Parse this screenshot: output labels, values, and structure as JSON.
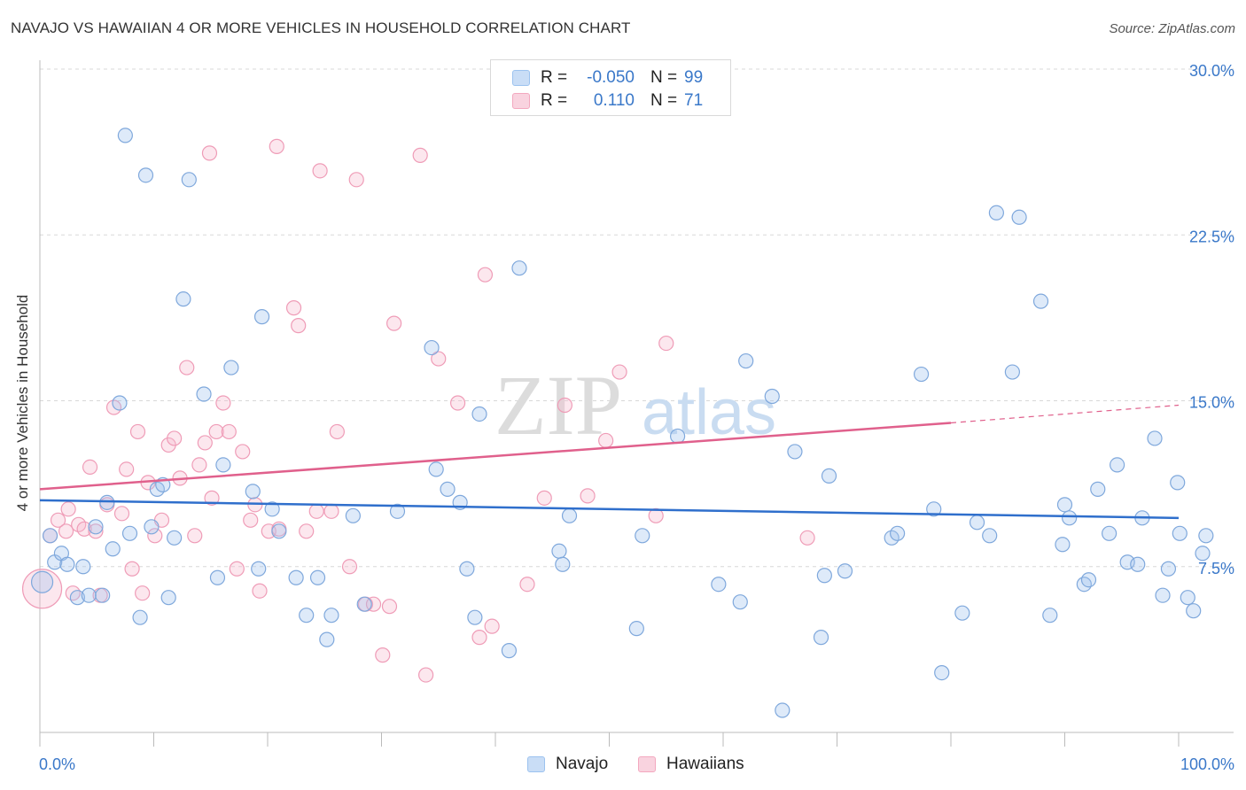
{
  "title": "NAVAJO VS HAWAIIAN 4 OR MORE VEHICLES IN HOUSEHOLD CORRELATION CHART",
  "source": "Source: ZipAtlas.com",
  "watermark": {
    "zip": "ZIP",
    "atlas": "atlas"
  },
  "legend": {
    "rows": [
      {
        "r_label": "R =",
        "r_value": "-0.050",
        "n_label": "N =",
        "n_value": "99",
        "color": "#9cc2ef",
        "fill": "#c9ddf6"
      },
      {
        "r_label": "R =",
        "r_value": "0.110",
        "n_label": "N =",
        "n_value": "71",
        "color": "#f3a8bf",
        "fill": "#f9d3df"
      }
    ]
  },
  "bottom_legend": {
    "navajo": "Navajo",
    "hawaiians": "Hawaiians"
  },
  "colors": {
    "navajo_stroke": "#7fa8dc",
    "navajo_fill": "rgba(160,196,238,0.35)",
    "navajo_line": "#2f6fcc",
    "hawaiian_stroke": "#ef9cb7",
    "hawaiian_fill": "rgba(246,186,206,0.35)",
    "hawaiian_line": "#e0608c",
    "tick_label": "#3a78c9",
    "grid": "#d8d8d8"
  },
  "chart_data": {
    "type": "scatter",
    "title": "NAVAJO VS HAWAIIAN 4 OR MORE VEHICLES IN HOUSEHOLD CORRELATION CHART",
    "xlabel": "",
    "ylabel": "4 or more Vehicles in Household",
    "xlim": [
      0,
      100
    ],
    "ylim": [
      0,
      30
    ],
    "x_tick_labels": [
      "0.0%",
      "100.0%"
    ],
    "y_ticks": [
      7.5,
      15.0,
      22.5,
      30.0
    ],
    "y_tick_labels": [
      "7.5%",
      "15.0%",
      "22.5%",
      "30.0%"
    ],
    "grid": "horizontal dashed",
    "series": [
      {
        "name": "Navajo",
        "trend": {
          "x": [
            0,
            100
          ],
          "y": [
            10.5,
            9.7
          ]
        },
        "points": [
          [
            0.2,
            6.8
          ],
          [
            0.9,
            8.9
          ],
          [
            1.3,
            7.7
          ],
          [
            1.9,
            8.1
          ],
          [
            2.4,
            7.6
          ],
          [
            3.3,
            6.1
          ],
          [
            3.8,
            7.5
          ],
          [
            4.3,
            6.2
          ],
          [
            4.9,
            9.3
          ],
          [
            5.5,
            6.2
          ],
          [
            5.9,
            10.4
          ],
          [
            6.4,
            8.3
          ],
          [
            7.0,
            14.9
          ],
          [
            7.5,
            27.0
          ],
          [
            7.9,
            9.0
          ],
          [
            8.8,
            5.2
          ],
          [
            9.3,
            25.2
          ],
          [
            9.8,
            9.3
          ],
          [
            10.3,
            11.0
          ],
          [
            10.8,
            11.2
          ],
          [
            11.3,
            6.1
          ],
          [
            11.8,
            8.8
          ],
          [
            12.6,
            19.6
          ],
          [
            13.1,
            25.0
          ],
          [
            14.4,
            15.3
          ],
          [
            15.6,
            7.0
          ],
          [
            16.1,
            12.1
          ],
          [
            16.8,
            16.5
          ],
          [
            18.7,
            10.9
          ],
          [
            19.2,
            7.4
          ],
          [
            19.5,
            18.8
          ],
          [
            20.4,
            10.1
          ],
          [
            21.0,
            9.1
          ],
          [
            22.5,
            7.0
          ],
          [
            23.4,
            5.3
          ],
          [
            24.4,
            7.0
          ],
          [
            25.2,
            4.2
          ],
          [
            25.6,
            5.3
          ],
          [
            27.5,
            9.8
          ],
          [
            28.5,
            5.8
          ],
          [
            31.4,
            10.0
          ],
          [
            34.4,
            17.4
          ],
          [
            34.8,
            11.9
          ],
          [
            35.8,
            11.0
          ],
          [
            36.9,
            10.4
          ],
          [
            37.5,
            7.4
          ],
          [
            38.2,
            5.2
          ],
          [
            38.6,
            14.4
          ],
          [
            41.2,
            3.7
          ],
          [
            42.1,
            21.0
          ],
          [
            45.6,
            8.2
          ],
          [
            45.9,
            7.6
          ],
          [
            46.5,
            9.8
          ],
          [
            52.4,
            4.7
          ],
          [
            52.9,
            8.9
          ],
          [
            56.0,
            13.4
          ],
          [
            59.6,
            6.7
          ],
          [
            61.5,
            5.9
          ],
          [
            62.0,
            16.8
          ],
          [
            64.3,
            15.2
          ],
          [
            65.2,
            1.0
          ],
          [
            66.3,
            12.7
          ],
          [
            68.6,
            4.3
          ],
          [
            68.9,
            7.1
          ],
          [
            69.3,
            11.6
          ],
          [
            70.7,
            7.3
          ],
          [
            74.8,
            8.8
          ],
          [
            75.3,
            9.0
          ],
          [
            77.4,
            16.2
          ],
          [
            78.5,
            10.1
          ],
          [
            79.2,
            2.7
          ],
          [
            81.0,
            5.4
          ],
          [
            82.3,
            9.5
          ],
          [
            83.4,
            8.9
          ],
          [
            84.0,
            23.5
          ],
          [
            85.4,
            16.3
          ],
          [
            86.0,
            23.3
          ],
          [
            87.9,
            19.5
          ],
          [
            88.7,
            5.3
          ],
          [
            89.8,
            8.5
          ],
          [
            90.0,
            10.3
          ],
          [
            90.4,
            9.7
          ],
          [
            91.7,
            6.7
          ],
          [
            92.1,
            6.9
          ],
          [
            92.9,
            11.0
          ],
          [
            93.9,
            9.0
          ],
          [
            94.6,
            12.1
          ],
          [
            95.5,
            7.7
          ],
          [
            96.4,
            7.6
          ],
          [
            96.8,
            9.7
          ],
          [
            97.9,
            13.3
          ],
          [
            98.6,
            6.2
          ],
          [
            99.1,
            7.4
          ],
          [
            99.9,
            11.3
          ],
          [
            100.1,
            9.0
          ],
          [
            100.8,
            6.1
          ],
          [
            101.3,
            5.5
          ],
          [
            102.1,
            8.1
          ],
          [
            102.4,
            8.9
          ]
        ]
      },
      {
        "name": "Hawaiians",
        "trend": {
          "x": [
            0,
            80
          ],
          "y": [
            11.0,
            14.0
          ]
        },
        "trend_dashed": {
          "x": [
            80,
            100
          ],
          "y": [
            14.0,
            14.8
          ]
        },
        "points": [
          [
            0.2,
            6.5
          ],
          [
            0.9,
            8.9
          ],
          [
            1.6,
            9.6
          ],
          [
            2.3,
            9.1
          ],
          [
            2.5,
            10.1
          ],
          [
            2.9,
            6.3
          ],
          [
            3.4,
            9.4
          ],
          [
            3.9,
            9.2
          ],
          [
            4.4,
            12.0
          ],
          [
            4.9,
            9.1
          ],
          [
            5.3,
            6.2
          ],
          [
            5.9,
            10.3
          ],
          [
            6.5,
            14.7
          ],
          [
            7.2,
            9.9
          ],
          [
            7.6,
            11.9
          ],
          [
            8.1,
            7.4
          ],
          [
            8.6,
            13.6
          ],
          [
            9.0,
            6.3
          ],
          [
            9.5,
            11.3
          ],
          [
            10.1,
            8.9
          ],
          [
            10.7,
            9.6
          ],
          [
            11.3,
            13.0
          ],
          [
            11.8,
            13.3
          ],
          [
            12.3,
            11.5
          ],
          [
            12.9,
            16.5
          ],
          [
            13.6,
            8.9
          ],
          [
            14.0,
            12.1
          ],
          [
            14.5,
            13.1
          ],
          [
            15.1,
            10.6
          ],
          [
            15.5,
            13.6
          ],
          [
            16.1,
            14.9
          ],
          [
            16.6,
            13.6
          ],
          [
            17.3,
            7.4
          ],
          [
            17.8,
            12.7
          ],
          [
            18.5,
            9.6
          ],
          [
            18.9,
            10.3
          ],
          [
            19.3,
            6.4
          ],
          [
            20.1,
            9.1
          ],
          [
            21.0,
            9.2
          ],
          [
            22.3,
            19.2
          ],
          [
            22.7,
            18.4
          ],
          [
            23.4,
            9.1
          ],
          [
            24.3,
            10.0
          ],
          [
            24.6,
            25.4
          ],
          [
            25.6,
            10.0
          ],
          [
            26.1,
            13.6
          ],
          [
            27.2,
            7.5
          ],
          [
            27.8,
            25.0
          ],
          [
            28.6,
            5.8
          ],
          [
            29.3,
            5.8
          ],
          [
            30.1,
            3.5
          ],
          [
            30.7,
            5.7
          ],
          [
            31.1,
            18.5
          ],
          [
            33.4,
            26.1
          ],
          [
            33.9,
            2.6
          ],
          [
            35.0,
            16.9
          ],
          [
            36.7,
            14.9
          ],
          [
            38.6,
            4.3
          ],
          [
            39.1,
            20.7
          ],
          [
            39.7,
            4.8
          ],
          [
            42.8,
            6.7
          ],
          [
            44.3,
            10.6
          ],
          [
            46.1,
            14.8
          ],
          [
            48.1,
            10.7
          ],
          [
            49.7,
            13.2
          ],
          [
            50.9,
            16.3
          ],
          [
            54.1,
            9.8
          ],
          [
            55.0,
            17.6
          ],
          [
            67.4,
            8.8
          ],
          [
            14.9,
            26.2
          ],
          [
            20.8,
            26.5
          ]
        ]
      }
    ]
  }
}
